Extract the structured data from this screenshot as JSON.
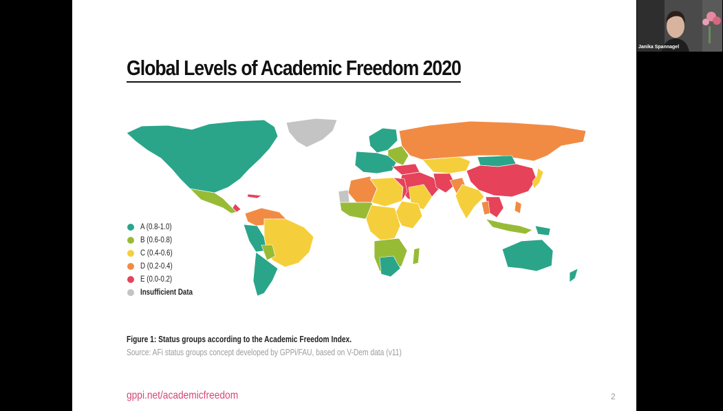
{
  "slide": {
    "title": "Global Levels of Academic Freedom 2020",
    "legend": [
      {
        "label": "A (0.8-1.0)",
        "color": "#2aa58a"
      },
      {
        "label": "B (0.6-0.8)",
        "color": "#98bb36"
      },
      {
        "label": "C (0.4-0.6)",
        "color": "#f5cf3b"
      },
      {
        "label": "D (0.2-0.4)",
        "color": "#f18b44"
      },
      {
        "label": "E (0.0-0.2)",
        "color": "#e6425a"
      },
      {
        "label": "Insufficient Data",
        "color": "#c4c4c4"
      }
    ],
    "caption": "Figure 1: Status groups according to the Academic Freedom Index.",
    "source": "Source: AFi status groups concept developed by GPPi/FAU, based on V-Dem data (v11)",
    "footer_link": "gppi.net/academicfreedom",
    "page_number": "2"
  },
  "video": {
    "participant_name": "Janika Spannagel"
  }
}
